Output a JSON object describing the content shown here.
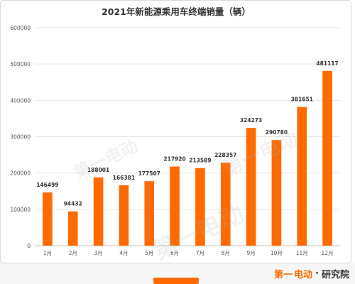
{
  "colors": {
    "bar": "#FF6A00",
    "grid": "#e6e6e6",
    "text": "#333333",
    "axis": "#555555"
  },
  "brand": {
    "part1": "第一",
    "part2": "电动",
    "dot": "·",
    "part3": "研究院",
    "watermark": "第一电动"
  },
  "chart_data": {
    "type": "bar",
    "title": "2021年新能源乘用车终端销量（辆）",
    "categories": [
      "1月",
      "2月",
      "3月",
      "4月",
      "5月",
      "6月",
      "7月",
      "8月",
      "9月",
      "10月",
      "11月",
      "12月"
    ],
    "values": [
      146499,
      94432,
      188001,
      166381,
      177507,
      217920,
      213589,
      228357,
      324273,
      290780,
      381651,
      481117
    ],
    "ylim": [
      0,
      600000
    ],
    "yticks": [
      0,
      100000,
      200000,
      300000,
      400000,
      500000,
      600000
    ],
    "grid": true,
    "data_labels": true
  }
}
